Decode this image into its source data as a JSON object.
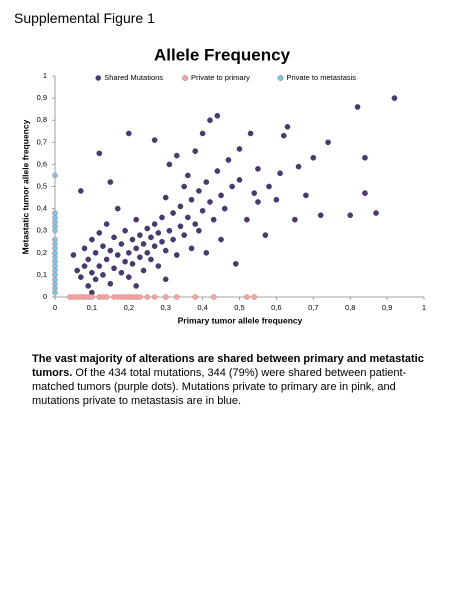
{
  "header": "Supplemental Figure 1",
  "chart_data": {
    "type": "scatter",
    "title": "Allele Frequency",
    "x_label": "Primary tumor allele frequency",
    "y_label": "Metastatic tumor allele frequency",
    "xlim": [
      0,
      1
    ],
    "ylim": [
      0,
      1
    ],
    "xticks": [
      0,
      {
        "value": 0.1,
        "label": "0,1"
      },
      {
        "value": 0.2,
        "label": "0,2"
      },
      {
        "value": 0.3,
        "label": "0,3"
      },
      {
        "value": 0.4,
        "label": "0,4"
      },
      {
        "value": 0.5,
        "label": "0,5"
      },
      {
        "value": 0.6,
        "label": "0,6"
      },
      {
        "value": 0.7,
        "label": "0,7"
      },
      {
        "value": 0.8,
        "label": "0,8"
      },
      {
        "value": 0.9,
        "label": "0,9"
      },
      1
    ],
    "yticks": [
      0,
      {
        "value": 0.1,
        "label": "0,1"
      },
      {
        "value": 0.2,
        "label": "0,2"
      },
      {
        "value": 0.3,
        "label": "0,3"
      },
      {
        "value": 0.4,
        "label": "0,4"
      },
      {
        "value": 0.5,
        "label": "0,5"
      },
      {
        "value": 0.6,
        "label": "0,6"
      },
      {
        "value": 0.7,
        "label": "0,7"
      },
      {
        "value": 0.8,
        "label": "0,8"
      },
      {
        "value": 0.9,
        "label": "0,9"
      },
      1
    ],
    "grid": false,
    "legend": "top",
    "series": [
      {
        "name": "Shared Mutations",
        "color": "#4b3a72",
        "x": [
          0.05,
          0.06,
          0.07,
          0.08,
          0.08,
          0.09,
          0.09,
          0.1,
          0.1,
          0.11,
          0.11,
          0.12,
          0.12,
          0.13,
          0.13,
          0.14,
          0.14,
          0.15,
          0.15,
          0.16,
          0.16,
          0.17,
          0.17,
          0.18,
          0.18,
          0.19,
          0.19,
          0.2,
          0.2,
          0.21,
          0.21,
          0.22,
          0.22,
          0.23,
          0.23,
          0.24,
          0.24,
          0.25,
          0.25,
          0.26,
          0.26,
          0.27,
          0.27,
          0.28,
          0.28,
          0.29,
          0.29,
          0.3,
          0.3,
          0.31,
          0.31,
          0.32,
          0.32,
          0.33,
          0.33,
          0.34,
          0.34,
          0.35,
          0.35,
          0.36,
          0.36,
          0.37,
          0.37,
          0.38,
          0.38,
          0.39,
          0.39,
          0.4,
          0.4,
          0.41,
          0.41,
          0.42,
          0.42,
          0.43,
          0.44,
          0.44,
          0.45,
          0.46,
          0.47,
          0.48,
          0.49,
          0.5,
          0.5,
          0.52,
          0.53,
          0.54,
          0.55,
          0.57,
          0.58,
          0.6,
          0.61,
          0.62,
          0.63,
          0.65,
          0.66,
          0.68,
          0.7,
          0.72,
          0.74,
          0.8,
          0.82,
          0.84,
          0.84,
          0.87,
          0.92,
          0.12,
          0.2,
          0.27,
          0.07,
          0.15,
          0.45,
          0.55,
          0.22,
          0.1,
          0.3
        ],
        "values": [
          0.19,
          0.12,
          0.09,
          0.14,
          0.22,
          0.05,
          0.17,
          0.11,
          0.26,
          0.08,
          0.2,
          0.14,
          0.29,
          0.1,
          0.23,
          0.17,
          0.33,
          0.06,
          0.21,
          0.13,
          0.27,
          0.19,
          0.4,
          0.11,
          0.24,
          0.16,
          0.3,
          0.2,
          0.09,
          0.26,
          0.15,
          0.22,
          0.35,
          0.18,
          0.28,
          0.24,
          0.12,
          0.31,
          0.2,
          0.27,
          0.17,
          0.33,
          0.23,
          0.29,
          0.14,
          0.36,
          0.25,
          0.21,
          0.45,
          0.3,
          0.6,
          0.26,
          0.38,
          0.64,
          0.19,
          0.41,
          0.32,
          0.5,
          0.28,
          0.55,
          0.36,
          0.22,
          0.44,
          0.33,
          0.66,
          0.48,
          0.3,
          0.39,
          0.74,
          0.52,
          0.2,
          0.43,
          0.8,
          0.35,
          0.57,
          0.82,
          0.46,
          0.4,
          0.62,
          0.5,
          0.15,
          0.53,
          0.67,
          0.35,
          0.74,
          0.47,
          0.58,
          0.28,
          0.5,
          0.44,
          0.56,
          0.73,
          0.77,
          0.35,
          0.59,
          0.46,
          0.63,
          0.37,
          0.7,
          0.37,
          0.86,
          0.47,
          0.63,
          0.38,
          0.9,
          0.65,
          0.74,
          0.71,
          0.48,
          0.52,
          0.26,
          0.43,
          0.05,
          0.02,
          0.08
        ]
      },
      {
        "name": "Private to primary",
        "color": "#f2a7a4",
        "x": [
          0.04,
          0.05,
          0.06,
          0.07,
          0.08,
          0.09,
          0.1,
          0.12,
          0.13,
          0.14,
          0.16,
          0.17,
          0.18,
          0.19,
          0.2,
          0.21,
          0.22,
          0.23,
          0.25,
          0.27,
          0.3,
          0.33,
          0.38,
          0.43,
          0.52,
          0.54
        ],
        "values": [
          0,
          0,
          0,
          0,
          0,
          0,
          0,
          0,
          0,
          0,
          0,
          0,
          0,
          0,
          0,
          0,
          0,
          0,
          0,
          0,
          0,
          0,
          0,
          0,
          0,
          0
        ]
      },
      {
        "name": "Private to metastasis",
        "color": "#7fc4e6",
        "x": [
          0,
          0,
          0,
          0,
          0,
          0,
          0,
          0,
          0,
          0,
          0,
          0,
          0,
          0,
          0,
          0,
          0,
          0,
          0
        ],
        "values": [
          0.02,
          0.04,
          0.06,
          0.08,
          0.1,
          0.12,
          0.14,
          0.16,
          0.18,
          0.2,
          0.22,
          0.24,
          0.26,
          0.3,
          0.32,
          0.34,
          0.36,
          0.38,
          0.55
        ]
      }
    ]
  },
  "caption": {
    "bold": "The vast majority of alterations are shared between primary and metastatic tumors.",
    "text": "Of the 434 total mutations, 344 (79%) were shared between patient-matched tumors (purple dots).  Mutations private to primary are in pink, and mutations private to metastasis are in blue."
  }
}
